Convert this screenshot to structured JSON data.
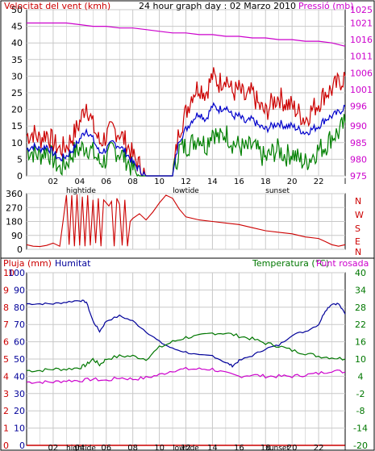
{
  "header": {
    "wind_label": "Velocitat del vent (kmh)",
    "title": "24 hour graph day : 02 Marzo 2010",
    "pressure_label": "Pressió (mb)"
  },
  "middle": {
    "compass": [
      "N",
      "W",
      "S",
      "E",
      "N"
    ]
  },
  "bottom": {
    "rain_label": "Pluja (mm)",
    "humidity_label": "Humitat",
    "temp_label": "Temperatura (°C)",
    "dew_label": "Punt rosada"
  },
  "colors": {
    "bg": "#ffffff",
    "frame": "#000000",
    "grid": "#c8c8c8",
    "tick": "#000000",
    "wind": "#cc0000",
    "wind_avg": "#0000cc",
    "wind_low": "#008000",
    "pressure": "#cc00cc",
    "direction": "#cc0000",
    "humidity": "#000099",
    "temperature": "#007700",
    "dew": "#cc00cc",
    "rain": "#cc0000",
    "label_red": "#cc0000",
    "label_magenta": "#cc00cc",
    "label_navy": "#000099",
    "label_green": "#007700",
    "label_black": "#000000"
  },
  "chart_data": [
    {
      "type": "line",
      "name": "wind-pressure",
      "title": "24 hour graph day : 02 Marzo 2010",
      "ylabel": "Velocitat del vent (kmh)",
      "ylabel_right": "Pressió (mb)",
      "x_ticks": [
        "02",
        "04",
        "06",
        "08",
        "10",
        "12",
        "14",
        "16",
        "18",
        "20",
        "22",
        "l"
      ],
      "x_markers": [
        {
          "label": "hightide",
          "x": 4.1
        },
        {
          "label": "lowtide",
          "x": 12.0
        },
        {
          "label": "sunset",
          "x": 18.9
        }
      ],
      "xlim": [
        0,
        24
      ],
      "ylim": [
        0,
        50
      ],
      "y_ticks": [
        0,
        5,
        10,
        15,
        20,
        25,
        30,
        35,
        40,
        45,
        50
      ],
      "ylim_right": [
        975,
        1025
      ],
      "y_ticks_right": [
        975,
        980,
        985,
        990,
        996,
        1001,
        1006,
        1011,
        1016,
        1021,
        1025
      ],
      "grid": true,
      "series": [
        {
          "key": "gust",
          "axis": "left",
          "x": [
            0,
            0.5,
            1,
            1.5,
            2,
            2.5,
            3,
            3.5,
            4,
            4.5,
            5,
            5.5,
            6,
            6.5,
            7,
            7.5,
            8,
            8.5,
            9,
            9.5,
            10,
            10.5,
            11,
            11.5,
            12,
            12.5,
            13,
            13.5,
            14,
            14.5,
            15,
            15.5,
            16,
            16.5,
            17,
            17.5,
            18,
            18.5,
            19,
            19.5,
            20,
            20.5,
            21,
            21.5,
            22,
            22.5,
            23,
            23.5,
            24
          ],
          "values": [
            12,
            13,
            11,
            13,
            10,
            8,
            9,
            12,
            16,
            22,
            15,
            10,
            12,
            14,
            13,
            10,
            6,
            3,
            0,
            0,
            0,
            0,
            0,
            14,
            19,
            25,
            27,
            25,
            30,
            28,
            30,
            25,
            26,
            23,
            25,
            21,
            19,
            22,
            24,
            22,
            21,
            19,
            17,
            20,
            22,
            25,
            26,
            28,
            30
          ]
        },
        {
          "key": "avg",
          "axis": "left",
          "x": [
            0,
            0.5,
            1,
            1.5,
            2,
            2.5,
            3,
            3.5,
            4,
            4.5,
            5,
            5.5,
            6,
            6.5,
            7,
            7.5,
            8,
            8.5,
            9,
            9.5,
            10,
            10.5,
            11,
            11.5,
            12,
            12.5,
            13,
            13.5,
            14,
            14.5,
            15,
            15.5,
            16,
            16.5,
            17,
            17.5,
            18,
            18.5,
            19,
            19.5,
            20,
            20.5,
            21,
            21.5,
            22,
            22.5,
            23,
            23.5,
            24
          ],
          "values": [
            8,
            9,
            8,
            9,
            7,
            5,
            6,
            8,
            11,
            14,
            11,
            7,
            8,
            10,
            9,
            7,
            4,
            2,
            0,
            0,
            0,
            0,
            0,
            11,
            14,
            17,
            19,
            17,
            21,
            20,
            21,
            18,
            18,
            16,
            17,
            15,
            14,
            15,
            16,
            15,
            15,
            14,
            13,
            14,
            15,
            17,
            18,
            19,
            21
          ]
        },
        {
          "key": "low",
          "axis": "left",
          "x": [
            0,
            0.5,
            1,
            1.5,
            2,
            2.5,
            3,
            3.5,
            4,
            4.5,
            5,
            5.5,
            6,
            6.5,
            7,
            7.5,
            8,
            8.5,
            9,
            9.5,
            10,
            10.5,
            11,
            11.5,
            12,
            12.5,
            13,
            13.5,
            14,
            14.5,
            15,
            15.5,
            16,
            16.5,
            17,
            17.5,
            18,
            18.5,
            19,
            19.5,
            20,
            20.5,
            21,
            21.5,
            22,
            22.5,
            23,
            23.5,
            24
          ],
          "values": [
            8,
            7,
            6,
            8,
            5,
            2,
            4,
            7,
            8,
            9,
            7,
            4,
            5,
            8,
            7,
            5,
            2,
            0,
            0,
            0,
            0,
            0,
            0,
            8,
            9,
            10,
            12,
            9,
            14,
            11,
            13,
            10,
            9,
            8,
            9,
            7,
            5,
            7,
            8,
            6,
            7,
            5,
            4,
            6,
            8,
            9,
            12,
            13,
            16
          ]
        },
        {
          "key": "pressure",
          "axis": "right",
          "x": [
            0,
            1,
            2,
            3,
            4,
            5,
            6,
            7,
            8,
            9,
            10,
            11,
            12,
            13,
            14,
            15,
            16,
            17,
            18,
            19,
            20,
            21,
            22,
            23,
            24
          ],
          "values": [
            1021,
            1021,
            1021,
            1021,
            1020.5,
            1020,
            1020,
            1019.5,
            1019.5,
            1019,
            1018.5,
            1018,
            1018,
            1017.5,
            1017.5,
            1017,
            1017,
            1016.5,
            1016.5,
            1016,
            1016,
            1015.5,
            1015.5,
            1015,
            1014
          ]
        }
      ]
    },
    {
      "type": "line",
      "name": "wind-direction",
      "xlim": [
        0,
        24
      ],
      "ylim": [
        0,
        360
      ],
      "y_ticks": [
        0,
        90,
        180,
        270,
        360
      ],
      "y_tick_labels": [
        "0",
        "90",
        "180",
        "270",
        "360"
      ],
      "compass_labels": [
        "N",
        "W",
        "S",
        "E",
        "N"
      ],
      "grid": true,
      "series": [
        {
          "key": "direction",
          "x": [
            0,
            0.5,
            1,
            1.5,
            2,
            2.5,
            3,
            3.2,
            3.4,
            3.6,
            3.8,
            4,
            4.2,
            4.4,
            4.6,
            4.8,
            5,
            5.2,
            5.4,
            5.6,
            5.8,
            6,
            6.2,
            6.4,
            6.6,
            6.8,
            7,
            7.2,
            7.4,
            7.6,
            7.8,
            8,
            8.5,
            9,
            9.5,
            10,
            10.5,
            11,
            11.5,
            12,
            13,
            14,
            15,
            16,
            17,
            18,
            19,
            20,
            21,
            22,
            22.5,
            23,
            23.5,
            24
          ],
          "values": [
            30,
            20,
            18,
            25,
            40,
            20,
            350,
            30,
            350,
            20,
            355,
            25,
            340,
            20,
            350,
            25,
            320,
            40,
            330,
            20,
            320,
            300,
            280,
            310,
            20,
            330,
            290,
            25,
            320,
            20,
            180,
            200,
            230,
            190,
            240,
            300,
            350,
            330,
            260,
            210,
            190,
            180,
            170,
            160,
            140,
            120,
            110,
            100,
            80,
            70,
            50,
            30,
            20,
            30
          ]
        }
      ]
    },
    {
      "type": "line",
      "name": "humidity-temperature",
      "ylabel": "Pluja (mm)",
      "ylabel_right": "Temperatura (°C)",
      "xlim": [
        0,
        24
      ],
      "y_ticks_left_rain": [
        0,
        1,
        2,
        3,
        4,
        5,
        6,
        7,
        8,
        9,
        10
      ],
      "y_ticks_left_humidity": [
        0,
        10,
        20,
        30,
        40,
        50,
        60,
        70,
        80,
        90,
        100
      ],
      "ylim_humidity": [
        0,
        100
      ],
      "ylim_temperature": [
        -20,
        40
      ],
      "y_ticks_right": [
        -20,
        -14,
        -8,
        -2,
        4,
        10,
        16,
        22,
        28,
        34,
        40
      ],
      "x_ticks": [
        "02",
        "04",
        "06",
        "08",
        "10",
        "12",
        "14",
        "16",
        "18",
        "20",
        "22",
        "l"
      ],
      "x_markers": [
        {
          "label": "hightide",
          "x": 4.1
        },
        {
          "label": "lowtide",
          "x": 12.0
        },
        {
          "label": "sunset",
          "x": 18.9
        }
      ],
      "grid": true,
      "series": [
        {
          "key": "humidity",
          "axis": "humidity",
          "name": "Humitat",
          "x": [
            0,
            1,
            2,
            3,
            4,
            4.5,
            5,
            5.5,
            6,
            7,
            8,
            9,
            10,
            11,
            12,
            13,
            14,
            15,
            15.5,
            16,
            17,
            18,
            19,
            20,
            21,
            22,
            22.5,
            23,
            23.5,
            24
          ],
          "values": [
            82,
            82,
            82,
            83,
            84,
            83,
            72,
            66,
            72,
            75,
            72,
            66,
            60,
            56,
            54,
            52,
            52,
            48,
            46,
            49,
            52,
            56,
            58,
            64,
            66,
            70,
            78,
            82,
            82,
            76
          ]
        },
        {
          "key": "temperature",
          "axis": "temperature",
          "name": "Temperatura (°C)",
          "x": [
            0,
            1,
            2,
            3,
            4,
            4.5,
            5,
            5.5,
            6,
            7,
            8,
            9,
            10,
            11,
            12,
            13,
            14,
            15,
            16,
            17,
            18,
            19,
            20,
            21,
            22,
            23,
            24
          ],
          "values": [
            6,
            6,
            6.5,
            6.5,
            7,
            8,
            10,
            8,
            10,
            11,
            11,
            10,
            14,
            16,
            17.5,
            18,
            19,
            19,
            18,
            17,
            15.5,
            14.5,
            13,
            12,
            11,
            10.5,
            10
          ]
        },
        {
          "key": "dew",
          "axis": "temperature",
          "name": "Punt rosada",
          "x": [
            0,
            1,
            2,
            3,
            4,
            5,
            6,
            7,
            8,
            9,
            10,
            11,
            12,
            13,
            14,
            15,
            16,
            17,
            18,
            19,
            20,
            21,
            22,
            23,
            24
          ],
          "values": [
            2,
            2,
            2,
            2.5,
            2.5,
            3,
            2.5,
            3.5,
            3,
            3.5,
            4.5,
            6,
            6.5,
            6.5,
            6.5,
            5,
            4,
            4.5,
            4,
            4,
            4,
            4.5,
            5,
            6,
            5.5
          ]
        },
        {
          "key": "rain",
          "axis": "humidity",
          "name": "Pluja (mm)",
          "x": [
            0,
            24
          ],
          "values": [
            0,
            0
          ]
        }
      ]
    }
  ]
}
